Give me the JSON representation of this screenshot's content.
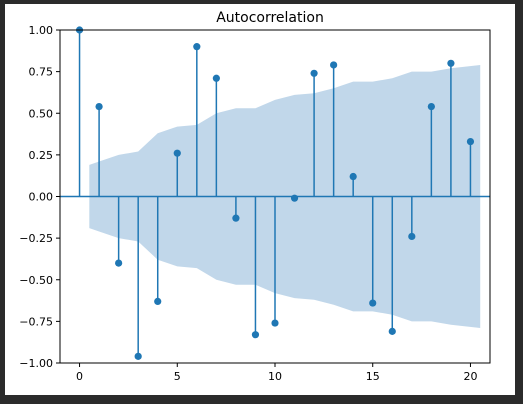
{
  "chart_data": {
    "type": "stem",
    "title": "Autocorrelation",
    "xlabel": "",
    "ylabel": "",
    "xlim": [
      -1,
      21
    ],
    "ylim": [
      -1.0,
      1.0
    ],
    "x_ticks": [
      0,
      5,
      10,
      15,
      20
    ],
    "x_tick_labels": [
      "0",
      "5",
      "10",
      "15",
      "20"
    ],
    "y_ticks": [
      1.0,
      0.75,
      0.5,
      0.25,
      0.0,
      -0.25,
      -0.5,
      -0.75,
      -1.0
    ],
    "y_tick_labels": [
      "1.00",
      "0.75",
      "0.50",
      "0.25",
      "0.00",
      "−0.25",
      "−0.50",
      "−0.75",
      "−1.00"
    ],
    "grid": false,
    "lags": [
      0,
      1,
      2,
      3,
      4,
      5,
      6,
      7,
      8,
      9,
      10,
      11,
      12,
      13,
      14,
      15,
      16,
      17,
      18,
      19,
      20
    ],
    "values": [
      1.0,
      0.54,
      -0.4,
      -0.96,
      -0.63,
      0.26,
      0.9,
      0.71,
      -0.13,
      -0.83,
      -0.76,
      -0.01,
      0.74,
      0.79,
      0.12,
      -0.64,
      -0.81,
      -0.24,
      0.54,
      0.8,
      0.33
    ],
    "confidence_interval": {
      "lags": [
        0.5,
        1,
        2,
        3,
        4,
        5,
        6,
        7,
        8,
        9,
        10,
        11,
        12,
        13,
        14,
        15,
        16,
        17,
        18,
        19,
        20.5
      ],
      "upper": [
        0.19,
        0.21,
        0.25,
        0.27,
        0.38,
        0.42,
        0.43,
        0.5,
        0.53,
        0.53,
        0.58,
        0.61,
        0.62,
        0.65,
        0.69,
        0.69,
        0.71,
        0.75,
        0.75,
        0.77,
        0.79
      ],
      "lower": [
        -0.19,
        -0.21,
        -0.25,
        -0.27,
        -0.38,
        -0.42,
        -0.43,
        -0.5,
        -0.53,
        -0.53,
        -0.58,
        -0.61,
        -0.62,
        -0.65,
        -0.69,
        -0.69,
        -0.71,
        -0.75,
        -0.75,
        -0.77,
        -0.79
      ]
    },
    "colors": {
      "stem": "#1f77b4",
      "band": "#c1d7ea",
      "axes": "#000000"
    }
  }
}
